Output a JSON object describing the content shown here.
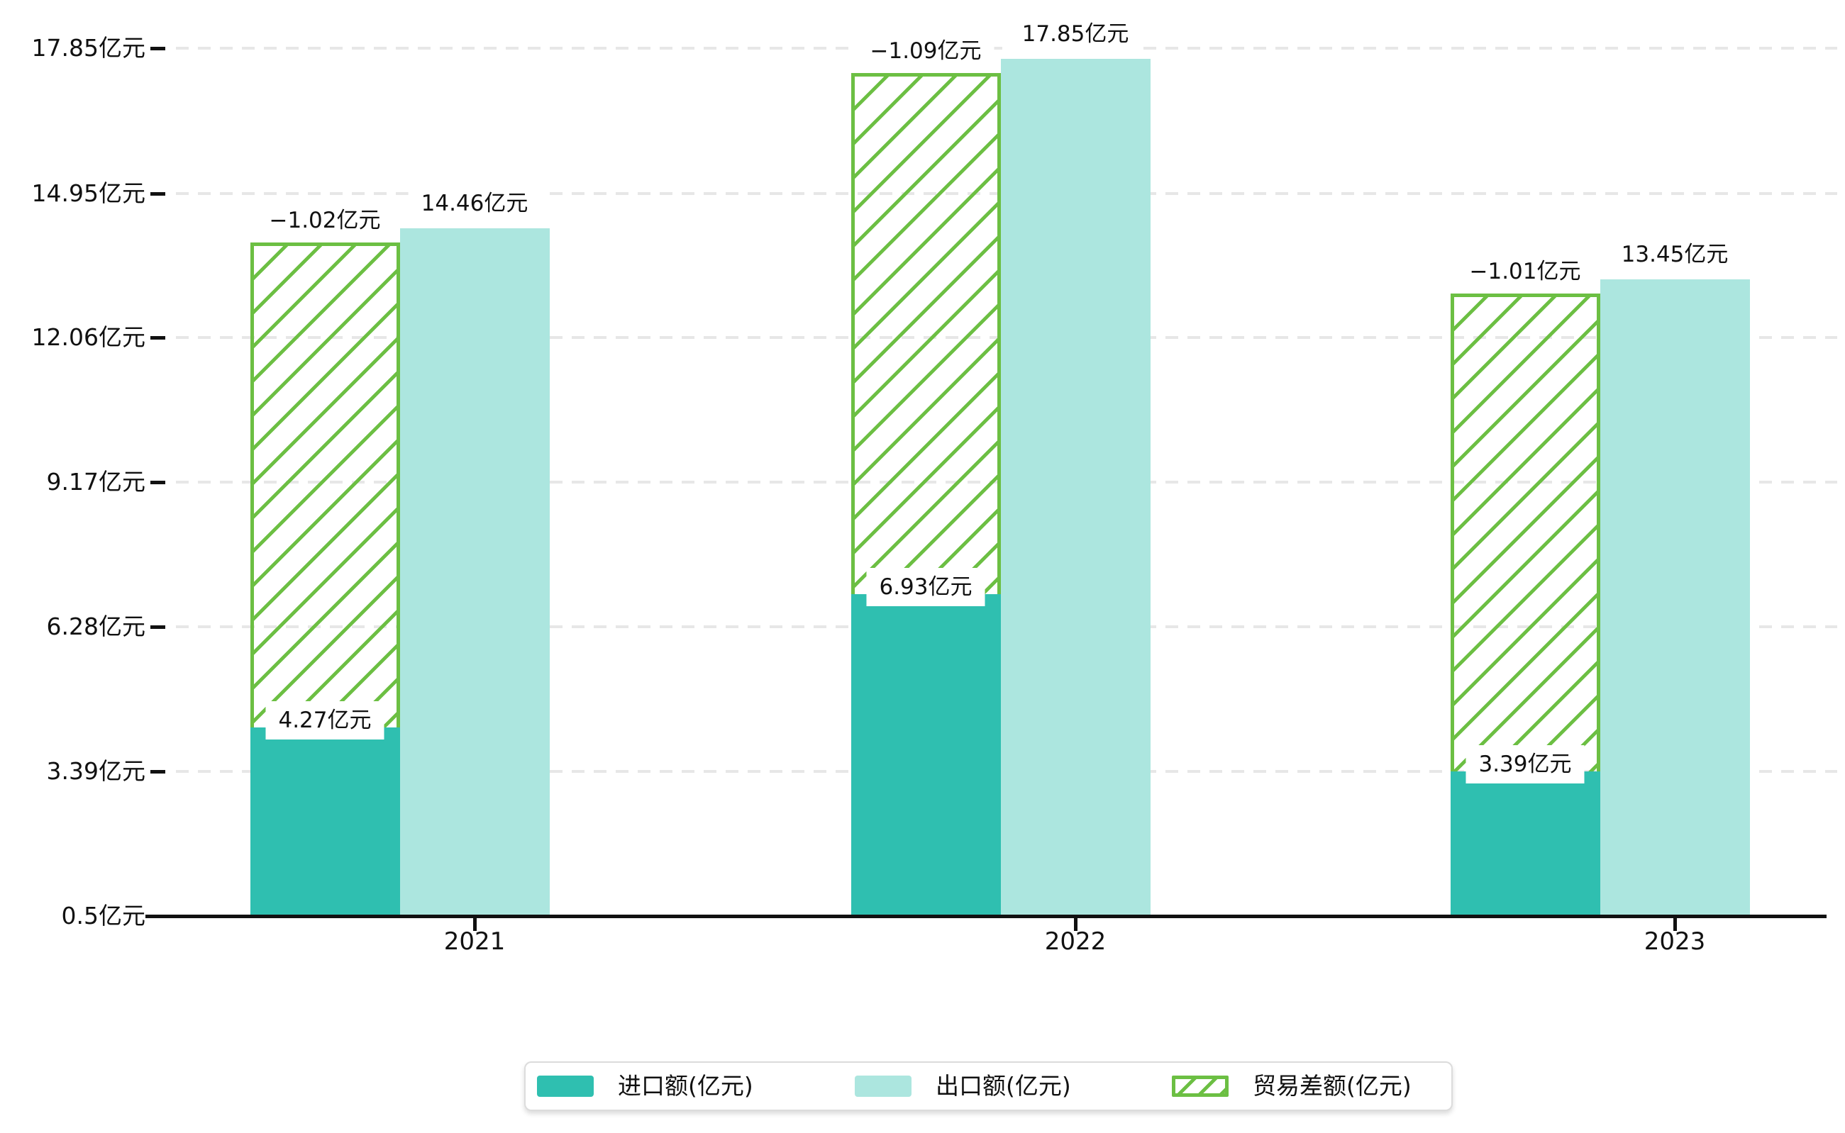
{
  "chart_data": {
    "type": "bar",
    "categories": [
      "2021",
      "2022",
      "2023"
    ],
    "series": [
      {
        "name": "进口额(亿元)",
        "role": "import",
        "style": "solid",
        "color": "#2fbfb0",
        "values": [
          4.27,
          6.93,
          3.39
        ],
        "data_labels": [
          "4.27亿元",
          "6.93亿元",
          "3.39亿元"
        ]
      },
      {
        "name": "出口额(亿元)",
        "role": "export",
        "style": "solid",
        "color": "#ace6df",
        "values": [
          14.46,
          17.85,
          13.45
        ],
        "data_labels": [
          "14.46亿元",
          "17.85亿元",
          "13.45亿元"
        ]
      },
      {
        "name": "贸易差额(亿元)",
        "role": "trade-balance",
        "style": "hatched-green",
        "color": "#6cbf43",
        "values": [
          -1.02,
          -1.09,
          -1.01
        ],
        "data_labels": [
          "−1.02亿元",
          "−1.09亿元",
          "−1.01亿元"
        ]
      }
    ],
    "y_axis": {
      "tick_labels": [
        "17.85亿元",
        "14.95亿元",
        "12.06亿元",
        "9.17亿元",
        "6.28亿元",
        "3.39亿元",
        "0.5亿元"
      ],
      "tick_values": [
        17.85,
        14.95,
        12.06,
        9.17,
        6.28,
        3.39,
        0.5
      ],
      "min": 0.5,
      "max": 17.85,
      "grid": "dashed"
    },
    "x_axis": {
      "tick_labels": [
        "2021",
        "2022",
        "2023"
      ]
    },
    "legend": {
      "position": "bottom-center",
      "items": [
        {
          "label": "进口额(亿元)",
          "swatch": "solid-teal"
        },
        {
          "label": "出口额(亿元)",
          "swatch": "solid-light-teal"
        },
        {
          "label": "贸易差额(亿元)",
          "swatch": "hatched-green"
        }
      ]
    },
    "colors": {
      "import": "#2fbfb0",
      "export": "#ace6df",
      "trade_balance": "#6cbf43",
      "grid": "#e7e7e7",
      "axis": "#111111",
      "text": "#111111",
      "legend_border": "#dcdcdc",
      "label_background": "#ffffff"
    }
  }
}
